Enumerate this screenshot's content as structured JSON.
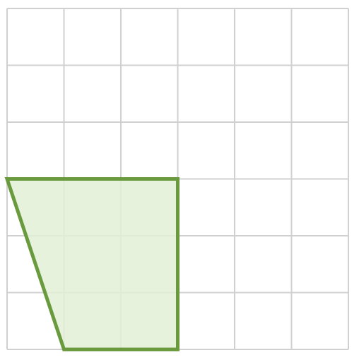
{
  "grid": {
    "columns": 6,
    "rows": 6,
    "line_color": "#d0d0d0",
    "show_grid": true
  },
  "shape": {
    "type": "trapezoid",
    "vertices_grid_units": [
      [
        0,
        3
      ],
      [
        3,
        3
      ],
      [
        3,
        6
      ],
      [
        1,
        6
      ]
    ],
    "fill_color": "#e3f0d6",
    "stroke_color": "#6a9a3e"
  }
}
